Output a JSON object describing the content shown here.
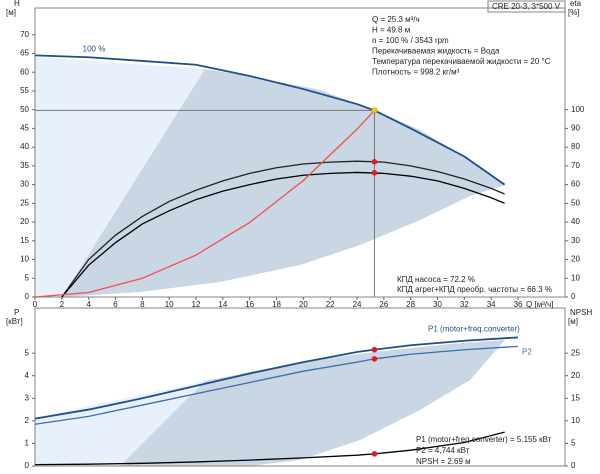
{
  "chart_data": [
    {
      "type": "line",
      "title": "CRE 20-3, 3*500 V",
      "ylabel": "H",
      "yunit": "[м]",
      "y2label": "eta",
      "y2unit": "[%]",
      "xlabel": "Q [м³/ч]",
      "xlim": [
        0,
        39.5
      ],
      "xticks": [
        0,
        2,
        4,
        6,
        8,
        10,
        12,
        14,
        16,
        18,
        20,
        22,
        24,
        26,
        28,
        30,
        32,
        34,
        36
      ],
      "ylim": [
        0,
        75
      ],
      "yticks": [
        0,
        5,
        10,
        15,
        20,
        25,
        30,
        35,
        40,
        45,
        50,
        55,
        60,
        65,
        70
      ],
      "y2lim": [
        0,
        150
      ],
      "y2ticks": [
        0,
        10,
        20,
        30,
        40,
        50,
        60,
        70,
        80,
        90,
        100
      ],
      "series": [
        {
          "name": "100 %",
          "color": "#1f4e8c",
          "x": [
            0,
            4,
            8,
            12,
            16,
            20,
            24,
            25.3,
            28,
            32,
            35
          ],
          "values": [
            64.5,
            64,
            63,
            62,
            59,
            55.5,
            51.5,
            49.8,
            45,
            37.5,
            30
          ]
        },
        {
          "color": "#222222",
          "axis": "y2",
          "x": [
            2,
            4,
            6,
            8,
            10,
            12,
            14,
            16,
            18,
            20,
            22,
            24,
            26,
            28,
            30,
            32,
            34,
            35
          ],
          "values": [
            0,
            20,
            33,
            43,
            51,
            57,
            62,
            66,
            69,
            71,
            72,
            72.5,
            72,
            70,
            67,
            63,
            58,
            55
          ]
        },
        {
          "color": "#000000",
          "axis": "y2",
          "x": [
            2,
            4,
            6,
            8,
            10,
            12,
            14,
            16,
            18,
            20,
            22,
            24,
            26,
            28,
            30,
            32,
            34,
            35
          ],
          "values": [
            0,
            17,
            29,
            39,
            46,
            52,
            56.5,
            60,
            63,
            65,
            66,
            66.5,
            66,
            64.5,
            62,
            58,
            53,
            50
          ]
        },
        {
          "color": "#f05050",
          "x": [
            0,
            4,
            8,
            12,
            16,
            20,
            24,
            25.3
          ],
          "values": [
            0,
            1.2,
            5,
            11.2,
            19.9,
            31.1,
            44.8,
            49.8
          ]
        }
      ],
      "points": [
        {
          "x": 25.3,
          "y": 49.8,
          "color": "#f5c518"
        },
        {
          "x": 25.3,
          "y": 72.2,
          "axis": "y2",
          "color": "#e41a1c"
        },
        {
          "x": 25.3,
          "y": 66.3,
          "axis": "y2",
          "color": "#e41a1c"
        }
      ],
      "info": [
        "Q = 25.3 м³/ч",
        "H = 49.8 м",
        "n = 100 % / 3543 rpm",
        "Перекачиваемая жидкость = Вода",
        "Температура перекачиваемой жидкости = 20 °C",
        "Плотность = 998.2 кг/м³"
      ],
      "notes": [
        "КПД насоса = 72.2 %",
        "КПД агрег+КПД преобр. частоты = 66.3 %"
      ]
    },
    {
      "type": "line",
      "ylabel": "P",
      "yunit": "[кВт]",
      "y2label": "NPSH",
      "y2unit": "[м]",
      "xlim": [
        0,
        39.5
      ],
      "ylim": [
        0,
        7
      ],
      "yticks": [
        0,
        1,
        2,
        3,
        4,
        5
      ],
      "y2lim": [
        0,
        35
      ],
      "y2ticks": [
        0,
        5,
        10,
        15,
        20,
        25
      ],
      "series": [
        {
          "name": "P1 (motor+freq.converter)",
          "color": "#1f4e8c",
          "x": [
            0,
            4,
            8,
            12,
            16,
            20,
            24,
            25.3,
            28,
            32,
            36
          ],
          "values": [
            2.1,
            2.5,
            3.0,
            3.55,
            4.1,
            4.6,
            5.05,
            5.155,
            5.35,
            5.55,
            5.7
          ]
        },
        {
          "name": "P2",
          "color": "#3a6fb0",
          "x": [
            0,
            4,
            8,
            12,
            16,
            20,
            24,
            25.3,
            28,
            32,
            36
          ],
          "values": [
            1.85,
            2.2,
            2.7,
            3.2,
            3.7,
            4.2,
            4.6,
            4.744,
            4.95,
            5.15,
            5.3
          ]
        },
        {
          "color": "#000000",
          "axis": "y2",
          "x": [
            0,
            4,
            8,
            12,
            16,
            20,
            24,
            25.3,
            28,
            32,
            35
          ],
          "values": [
            0.3,
            0.4,
            0.6,
            0.9,
            1.3,
            1.8,
            2.4,
            2.69,
            3.5,
            5.2,
            7.5
          ]
        }
      ],
      "points": [
        {
          "x": 25.3,
          "y": 5.155,
          "color": "#e41a1c"
        },
        {
          "x": 25.3,
          "y": 4.744,
          "color": "#e41a1c"
        },
        {
          "x": 25.3,
          "y": 2.69,
          "axis": "y2",
          "color": "#e41a1c"
        }
      ],
      "notes": [
        "P1 (motor+freq.converter) = 5.155 кВт",
        "P2 = 4,744 кВт",
        "NPSH = 2.69 м"
      ]
    }
  ]
}
